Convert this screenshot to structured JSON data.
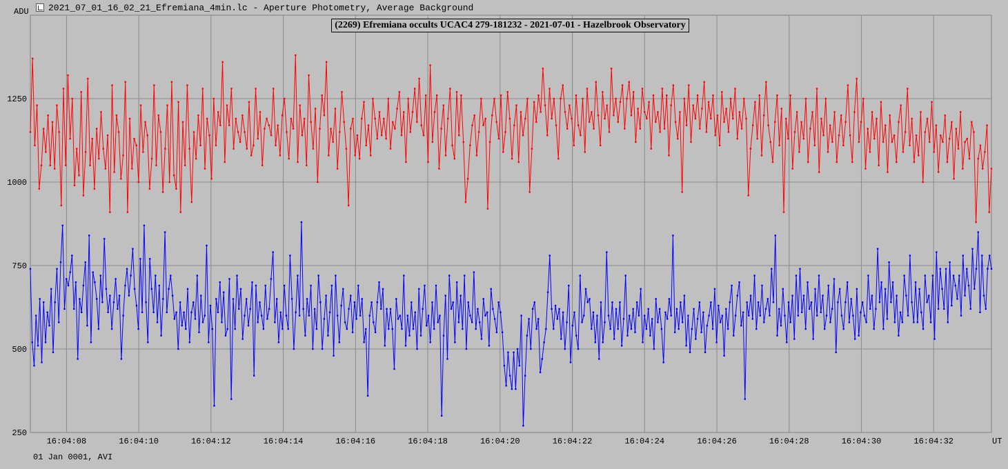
{
  "window": {
    "title": "2021_07_01_16_02_21_Efremiana_4min.lc - Aperture Photometry, Average Background",
    "icon": "chart-app-icon"
  },
  "footer": {
    "date": "01 Jan 0001, AVI"
  },
  "chart_data": {
    "type": "line",
    "title": "(2269) Efremiana occults UCAC4 279-181232 - 2021-07-01 - Hazelbrook Observatory",
    "ylabel": "ADU",
    "xlabel": "UT",
    "ylim": [
      250,
      1500
    ],
    "yticks": [
      250,
      500,
      750,
      1000,
      1250
    ],
    "xlim_seconds": [
      7.0,
      33.6
    ],
    "xticks": [
      "16:04:08",
      "16:04:10",
      "16:04:12",
      "16:04:14",
      "16:04:16",
      "16:04:18",
      "16:04:20",
      "16:04:22",
      "16:04:24",
      "16:04:26",
      "16:04:28",
      "16:04:30",
      "16:04:32"
    ],
    "grid": true,
    "series": [
      {
        "color": "#ff0000",
        "x_start": 7.0,
        "x_end": 33.6,
        "values": [
          1150,
          1370,
          1110,
          1230,
          980,
          1050,
          1160,
          1090,
          1200,
          1050,
          1180,
          1040,
          1230,
          1150,
          930,
          1280,
          1050,
          1320,
          1130,
          1250,
          990,
          1100,
          1020,
          1270,
          960,
          1090,
          1310,
          1050,
          1130,
          980,
          1160,
          1070,
          1210,
          1100,
          1040,
          1140,
          910,
          1290,
          1030,
          1200,
          1150,
          1010,
          1080,
          1300,
          910,
          1190,
          1040,
          1130,
          1110,
          1000,
          1230,
          1090,
          1180,
          1140,
          980,
          1070,
          1290,
          1050,
          1200,
          1150,
          970,
          1100,
          1230,
          1000,
          1300,
          1020,
          980,
          1240,
          910,
          1180,
          1050,
          1290,
          1100,
          940,
          1150,
          1070,
          1200,
          1110,
          1280,
          1040,
          1190,
          1140,
          1010,
          1250,
          1110,
          1210,
          1170,
          1360,
          1060,
          1230,
          1170,
          1280,
          1100,
          1190,
          1150,
          1120,
          1200,
          1150,
          1100,
          1240,
          1080,
          1110,
          1280,
          1130,
          1210,
          1050,
          1160,
          1190,
          1170,
          1140,
          1280,
          1110,
          1170,
          1080,
          1200,
          1250,
          1150,
          1070,
          1190,
          1160,
          1380,
          1060,
          1230,
          1140,
          1190,
          1050,
          1320,
          1180,
          1100,
          1220,
          1000,
          1160,
          1260,
          1200,
          1360,
          1080,
          1160,
          1120,
          1220,
          1040,
          1150,
          1270,
          1180,
          1100,
          930,
          1160,
          1190,
          1080,
          1140,
          1070,
          1190,
          1240,
          1110,
          1170,
          1080,
          1250,
          1190,
          1130,
          1210,
          1140,
          1190,
          1130,
          1250,
          1100,
          1180,
          1160,
          1220,
          1270,
          1140,
          1210,
          1060,
          1250,
          1150,
          1210,
          1280,
          1180,
          1310,
          1170,
          1140,
          1260,
          1060,
          1350,
          1120,
          1210,
          1260,
          1040,
          1160,
          1230,
          1080,
          1190,
          1280,
          1110,
          1070,
          1270,
          1140,
          1260,
          1120,
          940,
          1010,
          1110,
          1170,
          1200,
          1080,
          1150,
          1250,
          1170,
          1190,
          920,
          1120,
          1200,
          1250,
          1180,
          1130,
          1260,
          1090,
          1150,
          1270,
          1190,
          1070,
          1170,
          1230,
          1060,
          1210,
          1140,
          1190,
          1250,
          970,
          1100,
          1240,
          1180,
          1260,
          1210,
          1340,
          1230,
          1140,
          1280,
          1190,
          1250,
          1170,
          1070,
          1250,
          1290,
          1210,
          1160,
          1230,
          1190,
          1110,
          1260,
          1170,
          1140,
          1250,
          1090,
          1280,
          1180,
          1210,
          1160,
          1300,
          1200,
          1110,
          1270,
          1190,
          1230,
          1150,
          1340,
          1200,
          1250,
          1180,
          1240,
          1290,
          1160,
          1250,
          1300,
          1200,
          1270,
          1120,
          1220,
          1160,
          1280,
          1210,
          1190,
          1240,
          1100,
          1260,
          1180,
          1210,
          1150,
          1280,
          1160,
          1260,
          1080,
          1230,
          1290,
          1180,
          1130,
          1210,
          970,
          1250,
          1170,
          1290,
          1120,
          1230,
          1190,
          1260,
          1160,
          1220,
          1300,
          1150,
          1240,
          1190,
          1260,
          1140,
          1200,
          1110,
          1270,
          1180,
          1220,
          1150,
          1250,
          1190,
          1280,
          1130,
          1210,
          1160,
          1250,
          1190,
          960,
          1100,
          1170,
          1240,
          1130,
          1260,
          1080,
          1200,
          1300,
          1170,
          1120,
          1060,
          1180,
          1260,
          1110,
          1220,
          910,
          1190,
          1130,
          1260,
          1040,
          1150,
          1210,
          1090,
          1180,
          1130,
          1250,
          1060,
          1160,
          1210,
          1110,
          1280,
          1030,
          1190,
          1140,
          1250,
          1090,
          1170,
          1120,
          1210,
          1060,
          1140,
          1200,
          1110,
          1180,
          1290,
          1140,
          1060,
          1210,
          1310,
          1120,
          1180,
          1250,
          1040,
          1160,
          1090,
          1210,
          1130,
          1190,
          1050,
          1240,
          1120,
          1170,
          1030,
          1200,
          1120,
          1140,
          1060,
          1180,
          1230,
          1090,
          1150,
          1280,
          1110,
          1190,
          1060,
          1140,
          1080,
          1210,
          1000,
          1150,
          1190,
          1120,
          1240,
          1090,
          1170,
          1030,
          1140,
          1120,
          1200,
          1060,
          1130,
          1180,
          1010,
          1160,
          1100,
          1210,
          1040,
          1120,
          1130,
          1070,
          1180,
          1150,
          880,
          1070,
          1110,
          1040,
          1090,
          1170,
          910,
          1040
        ]
      },
      {
        "color": "#0000ff",
        "x_start": 7.0,
        "x_end": 33.6,
        "values": [
          740,
          520,
          450,
          600,
          510,
          650,
          460,
          640,
          520,
          610,
          570,
          680,
          490,
          640,
          740,
          580,
          760,
          870,
          620,
          710,
          690,
          730,
          780,
          620,
          700,
          470,
          650,
          610,
          690,
          760,
          570,
          840,
          520,
          730,
          700,
          650,
          560,
          720,
          640,
          830,
          680,
          610,
          660,
          560,
          640,
          710,
          620,
          660,
          470,
          600,
          690,
          740,
          660,
          720,
          800,
          680,
          630,
          560,
          770,
          610,
          870,
          640,
          520,
          770,
          680,
          610,
          720,
          580,
          690,
          540,
          650,
          850,
          610,
          680,
          720,
          660,
          590,
          610,
          500,
          640,
          570,
          610,
          560,
          680,
          520,
          610,
          640,
          590,
          720,
          550,
          660,
          580,
          600,
          810,
          520,
          630,
          560,
          330,
          650,
          610,
          700,
          580,
          670,
          540,
          560,
          710,
          350,
          650,
          560,
          720,
          620,
          680,
          530,
          600,
          650,
          570,
          620,
          700,
          420,
          690,
          580,
          640,
          600,
          560,
          690,
          590,
          620,
          710,
          790,
          580,
          650,
          520,
          610,
          560,
          690,
          600,
          560,
          780,
          650,
          500,
          610,
          720,
          600,
          880,
          620,
          540,
          650,
          600,
          690,
          500,
          620,
          560,
          720,
          640,
          500,
          590,
          660,
          540,
          610,
          690,
          480,
          720,
          600,
          520,
          630,
          680,
          580,
          560,
          620,
          660,
          550,
          640,
          590,
          690,
          600,
          650,
          520,
          560,
          360,
          600,
          640,
          580,
          550,
          640,
          700,
          620,
          680,
          510,
          620,
          560,
          620,
          560,
          440,
          650,
          590,
          600,
          560,
          720,
          510,
          600,
          540,
          640,
          560,
          610,
          500,
          680,
          540,
          620,
          690,
          570,
          600,
          520,
          640,
          560,
          690,
          580,
          600,
          300,
          540,
          660,
          470,
          720,
          620,
          640,
          520,
          700,
          580,
          660,
          560,
          720,
          500,
          640,
          600,
          580,
          730,
          560,
          620,
          580,
          530,
          650,
          600,
          610,
          510,
          680,
          620,
          590,
          550,
          640,
          610,
          550,
          450,
          390,
          490,
          420,
          380,
          490,
          380,
          500,
          450,
          600,
          270,
          420,
          540,
          590,
          500,
          620,
          640,
          560,
          590,
          430,
          470,
          520,
          560,
          670,
          780,
          620,
          560,
          630,
          590,
          620,
          530,
          610,
          500,
          580,
          690,
          460,
          570,
          610,
          540,
          500,
          720,
          580,
          600,
          680,
          640,
          650,
          560,
          610,
          520,
          600,
          470,
          640,
          520,
          580,
          790,
          600,
          560,
          640,
          530,
          620,
          560,
          640,
          510,
          590,
          720,
          540,
          600,
          560,
          620,
          550,
          640,
          600,
          680,
          520,
          600,
          560,
          620,
          540,
          590,
          500,
          650,
          580,
          620,
          560,
          460,
          610,
          590,
          650,
          600,
          840,
          550,
          620,
          560,
          640,
          580,
          660,
          510,
          600,
          490,
          560,
          620,
          530,
          590,
          640,
          550,
          610,
          490,
          570,
          600,
          640,
          560,
          680,
          520,
          630,
          580,
          600,
          480,
          620,
          560,
          640,
          690,
          540,
          600,
          660,
          700,
          570,
          610,
          350,
          640,
          600,
          660,
          590,
          720,
          560,
          640,
          600,
          690,
          580,
          620,
          650,
          600,
          740,
          640,
          840,
          540,
          620,
          570,
          680,
          600,
          520,
          640,
          580,
          660,
          530,
          720,
          600,
          740,
          610,
          660,
          560,
          700,
          620,
          640,
          530,
          680,
          600,
          720,
          610,
          660,
          560,
          600,
          690,
          580,
          620,
          710,
          490,
          640,
          680,
          600,
          560,
          640,
          700,
          580,
          650,
          600,
          530,
          680,
          540,
          610,
          640,
          600,
          580,
          720,
          620,
          660,
          560,
          620,
          800,
          640,
          700,
          560,
          680,
          590,
          760,
          640,
          700,
          580,
          660,
          540,
          610,
          580,
          720,
          660,
          600,
          780,
          640,
          580,
          700,
          580,
          680,
          610,
          560,
          720,
          640,
          660,
          580,
          720,
          530,
          790,
          620,
          740,
          680,
          620,
          740,
          580,
          760,
          630,
          720,
          690,
          650,
          720,
          600,
          780,
          660,
          740,
          690,
          620,
          800,
          680,
          740,
          850,
          610,
          780,
          660,
          620,
          740,
          780,
          740
        ]
      }
    ]
  }
}
